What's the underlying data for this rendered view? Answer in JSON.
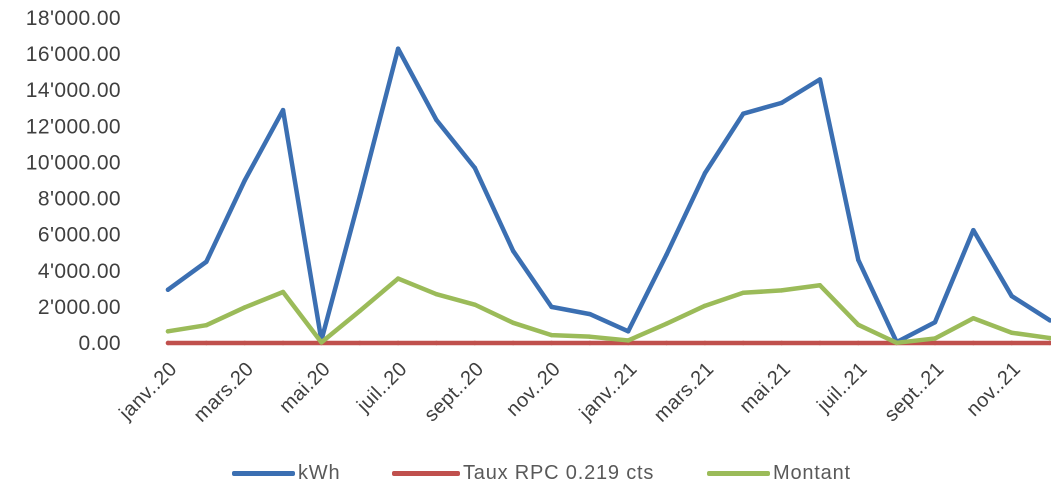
{
  "chart_data": {
    "type": "line",
    "categories": [
      "janv..20",
      "",
      "mars.20",
      "",
      "mai.20",
      "",
      "juil..20",
      "",
      "sept..20",
      "",
      "nov..20",
      "",
      "janv..21",
      "",
      "mars.21",
      "",
      "mai.21",
      "",
      "juil..21",
      "",
      "sept..21",
      "",
      "nov..21",
      ""
    ],
    "series": [
      {
        "name": "kWh",
        "color": "#3b6fb2",
        "values": [
          2950,
          4500,
          9000,
          12900,
          150,
          8100,
          16300,
          12350,
          9700,
          5100,
          2000,
          1600,
          650,
          4900,
          9400,
          12700,
          13300,
          14600,
          4600,
          50,
          1150,
          6250,
          2600,
          1250
        ]
      },
      {
        "name": "Taux RPC 0.219 cts",
        "color": "#c0504d",
        "values": [
          0.219,
          0.219,
          0.219,
          0.219,
          0.219,
          0.219,
          0.219,
          0.219,
          0.219,
          0.219,
          0.219,
          0.219,
          0.219,
          0.219,
          0.219,
          0.219,
          0.219,
          0.219,
          0.219,
          0.219,
          0.219,
          0.219,
          0.219,
          0.219
        ]
      },
      {
        "name": "Montant",
        "color": "#9bbb59",
        "values": [
          646,
          986,
          1971,
          2825,
          33,
          1774,
          3570,
          2705,
          2124,
          1117,
          438,
          350,
          142,
          1073,
          2059,
          2781,
          2913,
          3197,
          1007,
          11,
          252,
          1369,
          569,
          274
        ]
      }
    ],
    "ylim": [
      0,
      18000
    ],
    "yticks": [
      0,
      2000,
      4000,
      6000,
      8000,
      10000,
      12000,
      14000,
      16000,
      18000
    ],
    "ytick_labels": [
      "0.00",
      "2'000.00",
      "4'000.00",
      "6'000.00",
      "8'000.00",
      "10'000.00",
      "12'000.00",
      "14'000.00",
      "16'000.00",
      "18'000.00"
    ],
    "grid": false,
    "legend": "bottom"
  }
}
